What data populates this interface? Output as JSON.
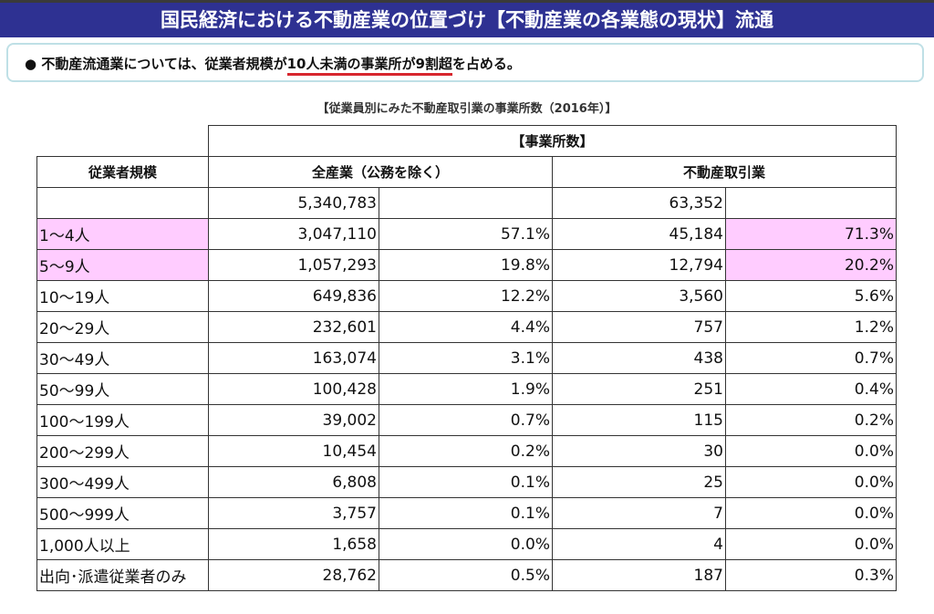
{
  "header": {
    "title": "国民経済における不動産業の位置づけ【不動産業の各業態の現状】流通"
  },
  "callout": {
    "bullet": "●",
    "pre": "不動産流通業については、従業者規模が",
    "highlight": "10人未満の事業所が9割超",
    "post": "を占める。",
    "underline_color": "#d7262e"
  },
  "caption": "【従業員別にみた不動産取引業の事業所数（2016年）】",
  "table": {
    "group_header": "【事業所数】",
    "headers": [
      "従業者規模",
      "全産業（公務を除く）",
      "不動産取引業"
    ],
    "highlight_color": "#ffccff",
    "total": {
      "all": "5,340,783",
      "re": "63,352"
    },
    "rows": [
      {
        "label": "1～4人",
        "all": "3,047,110",
        "all_pct": "57.1%",
        "re": "45,184",
        "re_pct": "71.3%",
        "highlight": true
      },
      {
        "label": "5～9人",
        "all": "1,057,293",
        "all_pct": "19.8%",
        "re": "12,794",
        "re_pct": "20.2%",
        "highlight": true
      },
      {
        "label": "10～19人",
        "all": "649,836",
        "all_pct": "12.2%",
        "re": "3,560",
        "re_pct": "5.6%"
      },
      {
        "label": "20～29人",
        "all": "232,601",
        "all_pct": "4.4%",
        "re": "757",
        "re_pct": "1.2%"
      },
      {
        "label": "30～49人",
        "all": "163,074",
        "all_pct": "3.1%",
        "re": "438",
        "re_pct": "0.7%"
      },
      {
        "label": "50～99人",
        "all": "100,428",
        "all_pct": "1.9%",
        "re": "251",
        "re_pct": "0.4%"
      },
      {
        "label": "100～199人",
        "all": "39,002",
        "all_pct": "0.7%",
        "re": "115",
        "re_pct": "0.2%"
      },
      {
        "label": "200～299人",
        "all": "10,454",
        "all_pct": "0.2%",
        "re": "30",
        "re_pct": "0.0%"
      },
      {
        "label": "300～499人",
        "all": "6,808",
        "all_pct": "0.1%",
        "re": "25",
        "re_pct": "0.0%"
      },
      {
        "label": "500～999人",
        "all": "3,757",
        "all_pct": "0.1%",
        "re": "7",
        "re_pct": "0.0%"
      },
      {
        "label": "1,000人以上",
        "all": "1,658",
        "all_pct": "0.0%",
        "re": "4",
        "re_pct": "0.0%"
      },
      {
        "label": "出向･派遣従業者のみ",
        "all": "28,762",
        "all_pct": "0.5%",
        "re": "187",
        "re_pct": "0.3%"
      }
    ]
  }
}
